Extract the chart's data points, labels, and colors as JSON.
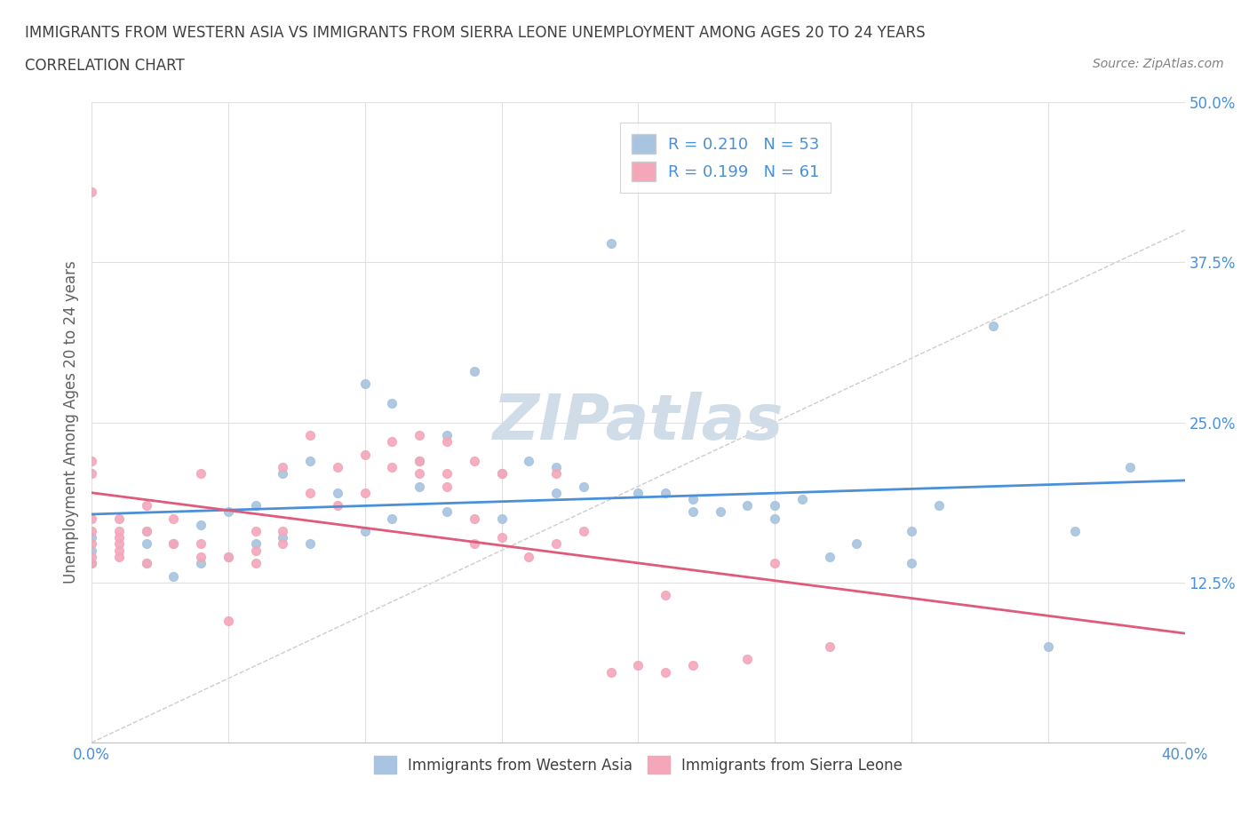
{
  "title_line1": "IMMIGRANTS FROM WESTERN ASIA VS IMMIGRANTS FROM SIERRA LEONE UNEMPLOYMENT AMONG AGES 20 TO 24 YEARS",
  "title_line2": "CORRELATION CHART",
  "source_text": "Source: ZipAtlas.com",
  "xlabel": "",
  "ylabel": "Unemployment Among Ages 20 to 24 years",
  "xlim": [
    0.0,
    0.4
  ],
  "ylim": [
    0.0,
    0.5
  ],
  "xtick_vals": [
    0.0,
    0.05,
    0.1,
    0.15,
    0.2,
    0.25,
    0.3,
    0.35,
    0.4
  ],
  "xtick_labels": [
    "0.0%",
    "",
    "",
    "",
    "",
    "",
    "",
    "",
    "40.0%"
  ],
  "ytick_vals": [
    0.0,
    0.125,
    0.25,
    0.375,
    0.5
  ],
  "ytick_labels": [
    "",
    "12.5%",
    "25.0%",
    "37.5%",
    "50.0%"
  ],
  "blue_color": "#a8c4e0",
  "pink_color": "#f4a7b9",
  "blue_line_color": "#4a90d9",
  "pink_line_color": "#e05a7a",
  "diag_line_color": "#c0c0c0",
  "watermark_color": "#d0dce8",
  "R_blue": 0.21,
  "N_blue": 53,
  "R_pink": 0.199,
  "N_pink": 61,
  "legend_label_blue": "Immigrants from Western Asia",
  "legend_label_pink": "Immigrants from Sierra Leone",
  "blue_scatter_x": [
    0.0,
    0.0,
    0.0,
    0.02,
    0.02,
    0.02,
    0.03,
    0.03,
    0.04,
    0.04,
    0.05,
    0.05,
    0.06,
    0.06,
    0.07,
    0.07,
    0.08,
    0.08,
    0.09,
    0.1,
    0.1,
    0.11,
    0.11,
    0.12,
    0.12,
    0.13,
    0.13,
    0.14,
    0.15,
    0.15,
    0.16,
    0.17,
    0.17,
    0.18,
    0.19,
    0.2,
    0.21,
    0.22,
    0.22,
    0.23,
    0.24,
    0.25,
    0.25,
    0.26,
    0.27,
    0.28,
    0.3,
    0.3,
    0.31,
    0.33,
    0.35,
    0.36,
    0.38
  ],
  "blue_scatter_y": [
    0.14,
    0.15,
    0.16,
    0.14,
    0.155,
    0.165,
    0.13,
    0.155,
    0.14,
    0.17,
    0.145,
    0.18,
    0.155,
    0.185,
    0.16,
    0.21,
    0.22,
    0.155,
    0.195,
    0.165,
    0.28,
    0.175,
    0.265,
    0.2,
    0.22,
    0.18,
    0.24,
    0.29,
    0.175,
    0.21,
    0.22,
    0.195,
    0.215,
    0.2,
    0.39,
    0.195,
    0.195,
    0.18,
    0.19,
    0.18,
    0.185,
    0.175,
    0.185,
    0.19,
    0.145,
    0.155,
    0.14,
    0.165,
    0.185,
    0.325,
    0.075,
    0.165,
    0.215
  ],
  "pink_scatter_x": [
    0.0,
    0.0,
    0.0,
    0.0,
    0.0,
    0.0,
    0.0,
    0.0,
    0.01,
    0.01,
    0.01,
    0.01,
    0.01,
    0.01,
    0.02,
    0.02,
    0.02,
    0.03,
    0.03,
    0.04,
    0.04,
    0.04,
    0.05,
    0.05,
    0.06,
    0.06,
    0.06,
    0.07,
    0.07,
    0.07,
    0.08,
    0.08,
    0.09,
    0.09,
    0.1,
    0.1,
    0.11,
    0.11,
    0.12,
    0.12,
    0.12,
    0.13,
    0.13,
    0.13,
    0.14,
    0.14,
    0.14,
    0.15,
    0.15,
    0.16,
    0.17,
    0.17,
    0.18,
    0.19,
    0.2,
    0.21,
    0.21,
    0.22,
    0.24,
    0.25,
    0.27
  ],
  "pink_scatter_y": [
    0.14,
    0.145,
    0.155,
    0.165,
    0.175,
    0.21,
    0.22,
    0.43,
    0.145,
    0.15,
    0.155,
    0.16,
    0.165,
    0.175,
    0.14,
    0.165,
    0.185,
    0.155,
    0.175,
    0.145,
    0.155,
    0.21,
    0.095,
    0.145,
    0.14,
    0.15,
    0.165,
    0.155,
    0.165,
    0.215,
    0.195,
    0.24,
    0.185,
    0.215,
    0.195,
    0.225,
    0.215,
    0.235,
    0.22,
    0.21,
    0.24,
    0.2,
    0.21,
    0.235,
    0.155,
    0.175,
    0.22,
    0.16,
    0.21,
    0.145,
    0.155,
    0.21,
    0.165,
    0.055,
    0.06,
    0.055,
    0.115,
    0.06,
    0.065,
    0.14,
    0.075
  ],
  "bg_color": "#ffffff",
  "grid_color": "#e0e0e0",
  "tick_label_color": "#4a90d9",
  "title_color": "#404040",
  "legend_text_color": "#4a90d9"
}
